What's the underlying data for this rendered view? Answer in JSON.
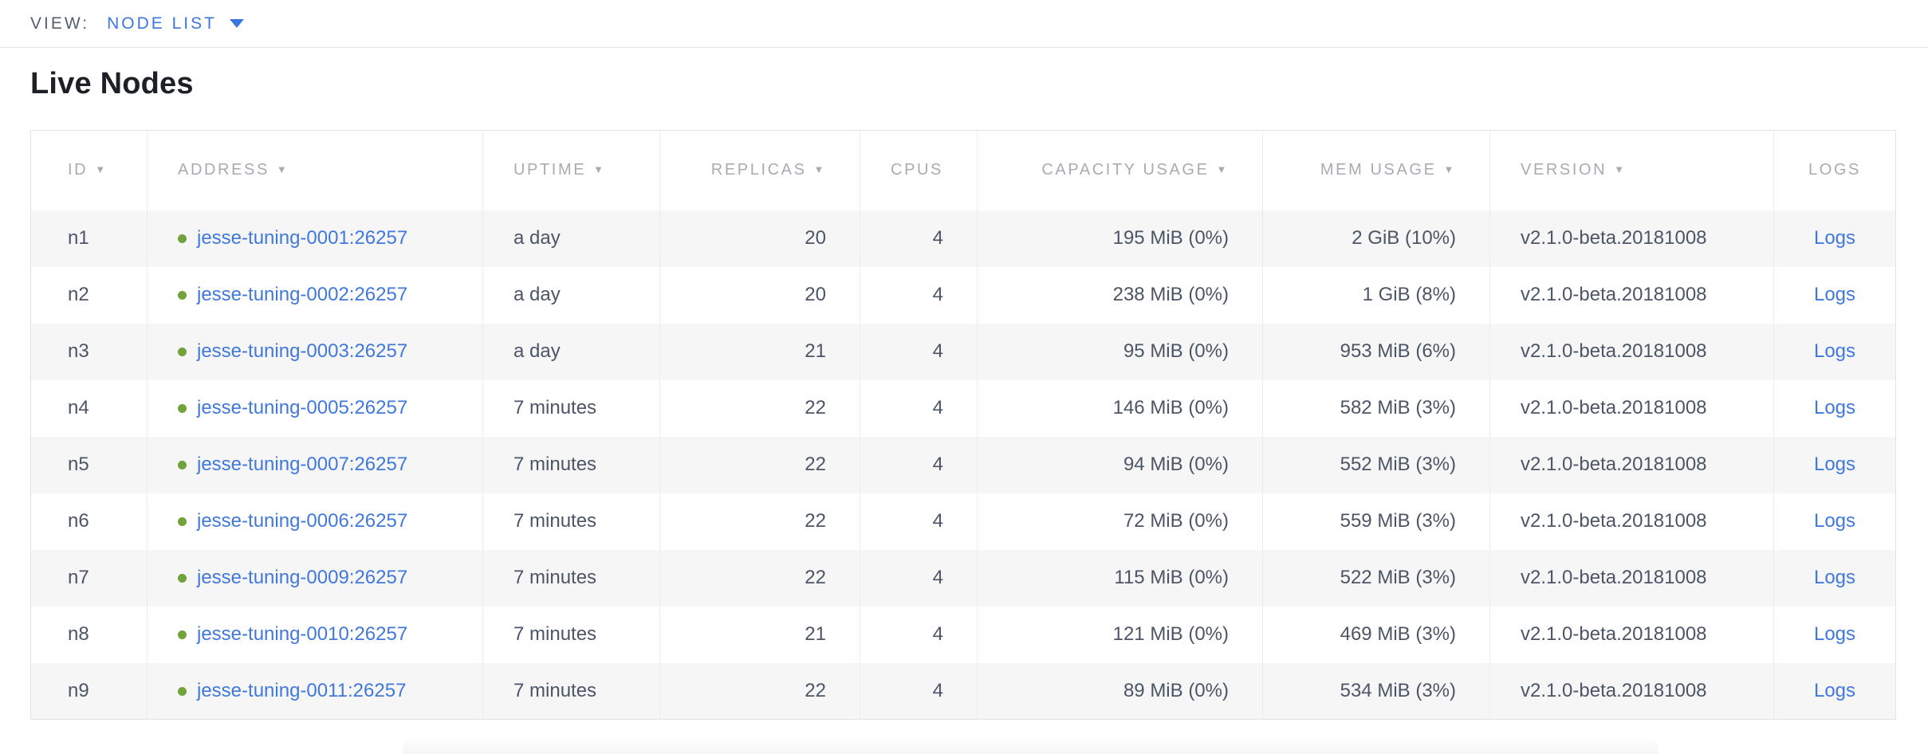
{
  "view_bar": {
    "label": "VIEW:",
    "selected": "NODE LIST"
  },
  "page": {
    "title": "Live Nodes"
  },
  "table": {
    "sort_indicator": "▼",
    "columns": [
      {
        "key": "id",
        "label": "ID",
        "sortable": true
      },
      {
        "key": "address",
        "label": "ADDRESS",
        "sortable": true
      },
      {
        "key": "uptime",
        "label": "UPTIME",
        "sortable": true
      },
      {
        "key": "replicas",
        "label": "REPLICAS",
        "sortable": true
      },
      {
        "key": "cpus",
        "label": "CPUS",
        "sortable": false
      },
      {
        "key": "capacity_usage",
        "label": "CAPACITY USAGE",
        "sortable": true
      },
      {
        "key": "mem_usage",
        "label": "MEM USAGE",
        "sortable": true
      },
      {
        "key": "version",
        "label": "VERSION",
        "sortable": true
      },
      {
        "key": "logs",
        "label": "LOGS",
        "sortable": false
      }
    ],
    "rows": [
      {
        "id": "n1",
        "status": "live",
        "address": "jesse-tuning-0001:26257",
        "uptime": "a day",
        "replicas": "20",
        "cpus": "4",
        "capacity_usage": "195 MiB (0%)",
        "mem_usage": "2 GiB (10%)",
        "version": "v2.1.0-beta.20181008",
        "logs": "Logs"
      },
      {
        "id": "n2",
        "status": "live",
        "address": "jesse-tuning-0002:26257",
        "uptime": "a day",
        "replicas": "20",
        "cpus": "4",
        "capacity_usage": "238 MiB (0%)",
        "mem_usage": "1 GiB (8%)",
        "version": "v2.1.0-beta.20181008",
        "logs": "Logs"
      },
      {
        "id": "n3",
        "status": "live",
        "address": "jesse-tuning-0003:26257",
        "uptime": "a day",
        "replicas": "21",
        "cpus": "4",
        "capacity_usage": "95 MiB (0%)",
        "mem_usage": "953 MiB (6%)",
        "version": "v2.1.0-beta.20181008",
        "logs": "Logs"
      },
      {
        "id": "n4",
        "status": "live",
        "address": "jesse-tuning-0005:26257",
        "uptime": "7 minutes",
        "replicas": "22",
        "cpus": "4",
        "capacity_usage": "146 MiB (0%)",
        "mem_usage": "582 MiB (3%)",
        "version": "v2.1.0-beta.20181008",
        "logs": "Logs"
      },
      {
        "id": "n5",
        "status": "live",
        "address": "jesse-tuning-0007:26257",
        "uptime": "7 minutes",
        "replicas": "22",
        "cpus": "4",
        "capacity_usage": "94 MiB (0%)",
        "mem_usage": "552 MiB (3%)",
        "version": "v2.1.0-beta.20181008",
        "logs": "Logs"
      },
      {
        "id": "n6",
        "status": "live",
        "address": "jesse-tuning-0006:26257",
        "uptime": "7 minutes",
        "replicas": "22",
        "cpus": "4",
        "capacity_usage": "72 MiB (0%)",
        "mem_usage": "559 MiB (3%)",
        "version": "v2.1.0-beta.20181008",
        "logs": "Logs"
      },
      {
        "id": "n7",
        "status": "live",
        "address": "jesse-tuning-0009:26257",
        "uptime": "7 minutes",
        "replicas": "22",
        "cpus": "4",
        "capacity_usage": "115 MiB (0%)",
        "mem_usage": "522 MiB (3%)",
        "version": "v2.1.0-beta.20181008",
        "logs": "Logs"
      },
      {
        "id": "n8",
        "status": "live",
        "address": "jesse-tuning-0010:26257",
        "uptime": "7 minutes",
        "replicas": "21",
        "cpus": "4",
        "capacity_usage": "121 MiB (0%)",
        "mem_usage": "469 MiB (3%)",
        "version": "v2.1.0-beta.20181008",
        "logs": "Logs"
      },
      {
        "id": "n9",
        "status": "live",
        "address": "jesse-tuning-0011:26257",
        "uptime": "7 minutes",
        "replicas": "22",
        "cpus": "4",
        "capacity_usage": "89 MiB (0%)",
        "mem_usage": "534 MiB (3%)",
        "version": "v2.1.0-beta.20181008",
        "logs": "Logs"
      }
    ]
  },
  "colors": {
    "accent_blue": "#3b77e0",
    "link": "#4078dd",
    "live_dot": "#71a23c",
    "row_alt_bg": "#f6f6f7",
    "header_text": "#a8abb2",
    "body_text": "#4c5566"
  }
}
